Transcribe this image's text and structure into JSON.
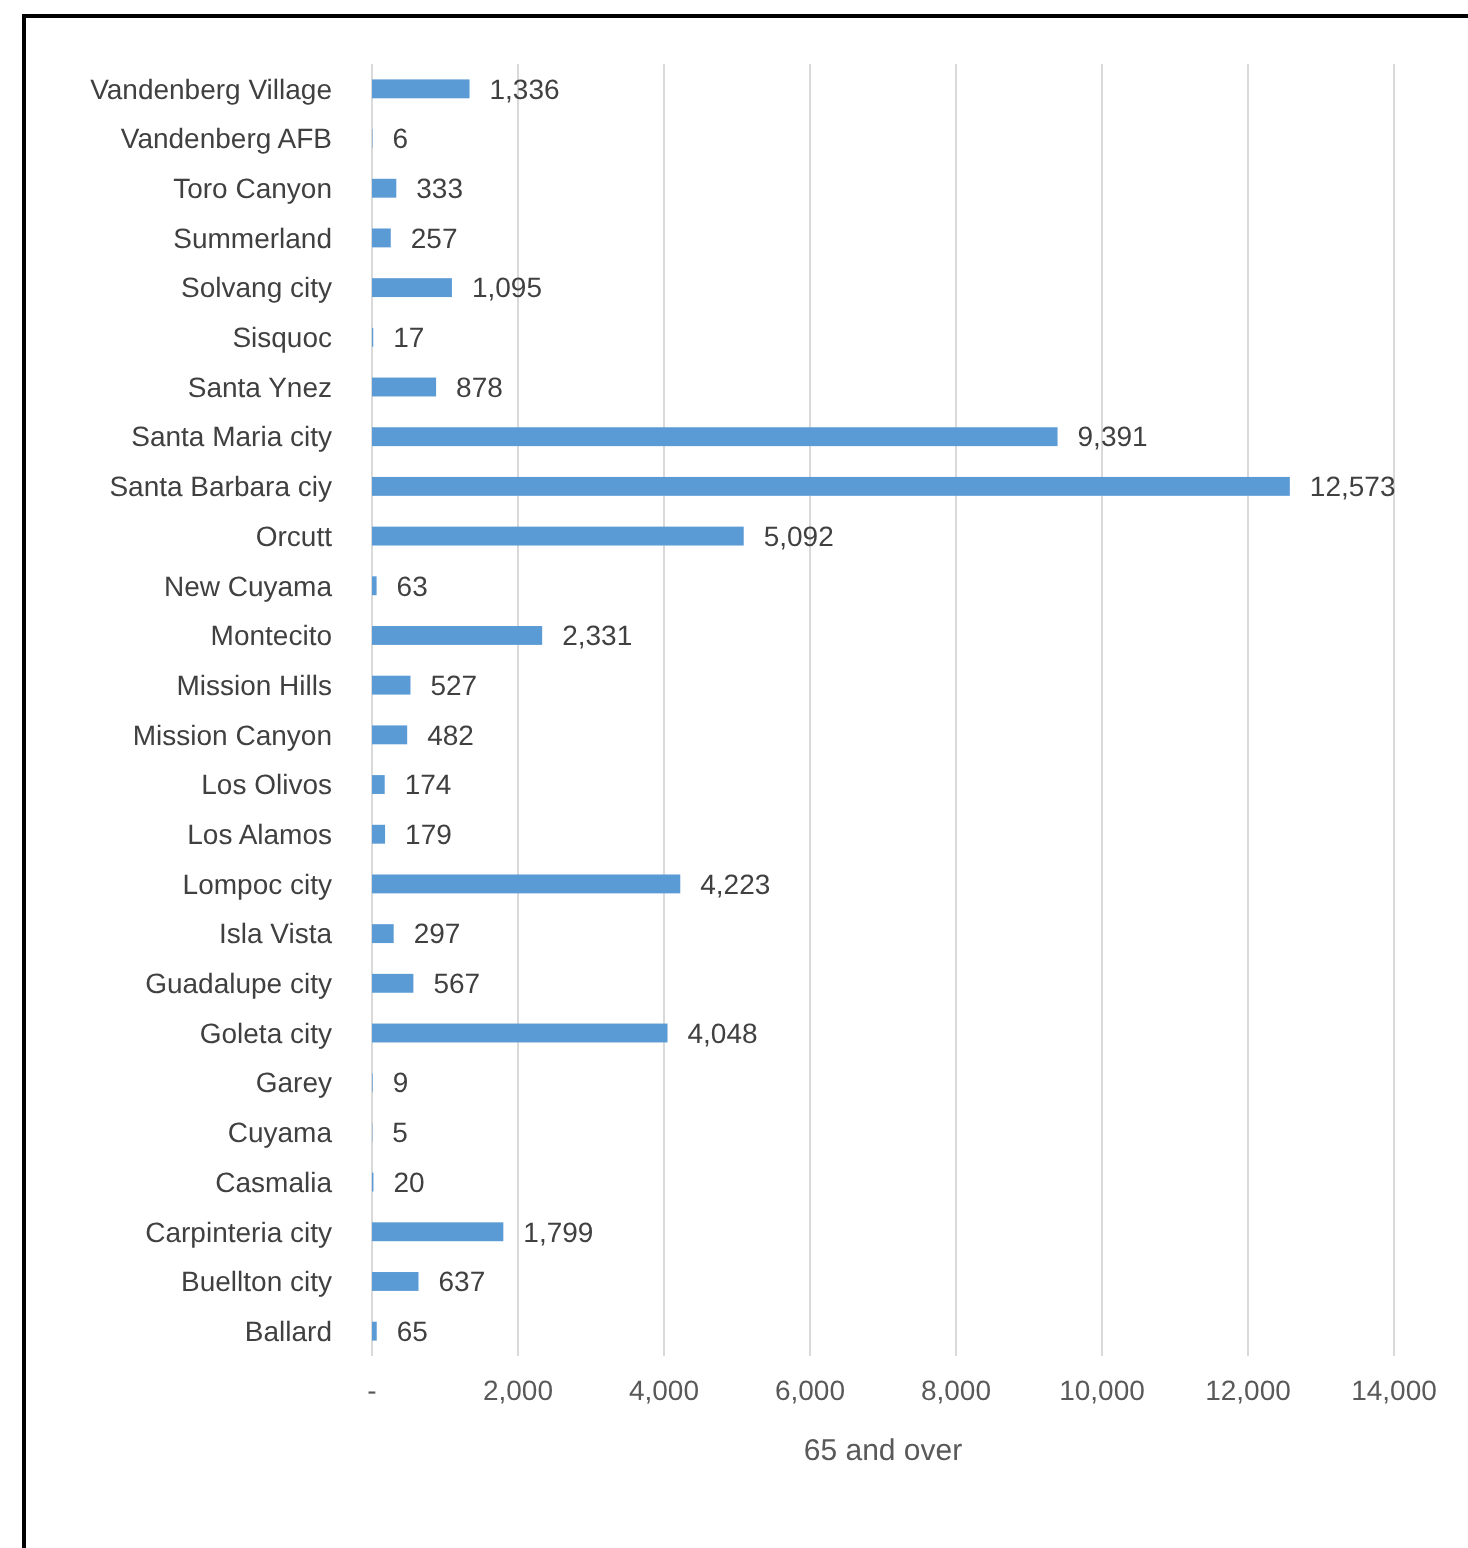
{
  "chart_data": {
    "type": "bar",
    "orientation": "horizontal",
    "xlabel": "65 and over",
    "categories": [
      "Vandenberg Village",
      "Vandenberg AFB",
      "Toro Canyon",
      "Summerland",
      "Solvang city",
      "Sisquoc",
      "Santa Ynez",
      "Santa Maria city",
      "Santa Barbara ciy",
      "Orcutt",
      "New Cuyama",
      "Montecito",
      "Mission Hills",
      "Mission Canyon",
      "Los Olivos",
      "Los Alamos",
      "Lompoc city",
      "Isla Vista",
      "Guadalupe city",
      "Goleta city",
      "Garey",
      "Cuyama",
      "Casmalia",
      "Carpinteria city",
      "Buellton city",
      "Ballard"
    ],
    "values": [
      1336,
      6,
      333,
      257,
      1095,
      17,
      878,
      9391,
      12573,
      5092,
      63,
      2331,
      527,
      482,
      174,
      179,
      4223,
      297,
      567,
      4048,
      9,
      5,
      20,
      1799,
      637,
      65
    ],
    "value_labels": [
      "1,336",
      "6",
      "333",
      "257",
      "1,095",
      "17",
      "878",
      "9,391",
      "12,573",
      "5,092",
      "63",
      "2,331",
      "527",
      "482",
      "174",
      "179",
      "4,223",
      "297",
      "567",
      "4,048",
      "9",
      "5",
      "20",
      "1,799",
      "637",
      "65"
    ],
    "color": "#5b9bd5",
    "xlim": [
      0,
      14000
    ],
    "xticks": [
      {
        "value": 0,
        "label": "-"
      },
      {
        "value": 2000,
        "label": "2,000"
      },
      {
        "value": 4000,
        "label": "4,000"
      },
      {
        "value": 6000,
        "label": "6,000"
      },
      {
        "value": 8000,
        "label": "8,000"
      },
      {
        "value": 10000,
        "label": "10,000"
      },
      {
        "value": 12000,
        "label": "12,000"
      },
      {
        "value": 14000,
        "label": "14,000"
      }
    ],
    "grid": "x"
  }
}
